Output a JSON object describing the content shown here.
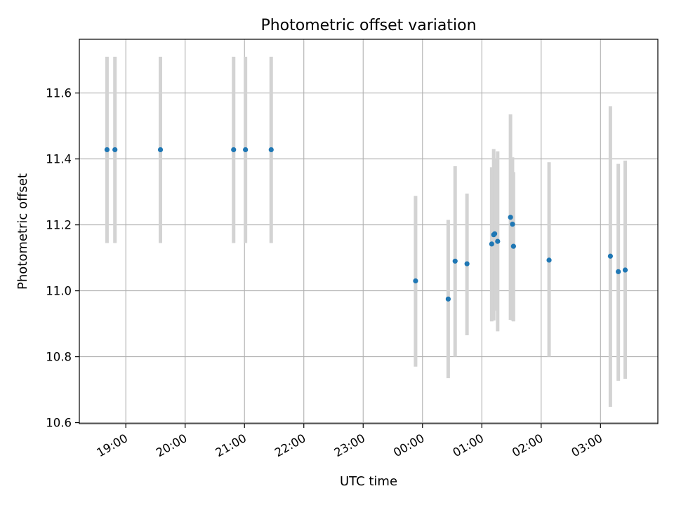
{
  "chart_data": {
    "type": "scatter",
    "title": "Photometric offset variation",
    "xlabel": "UTC time",
    "ylabel": "Photometric offset",
    "x_is_time": true,
    "xlim": [
      "18:13",
      "03:58"
    ],
    "ylim": [
      10.597,
      11.763
    ],
    "grid": true,
    "x_ticks": [
      "19:00",
      "20:00",
      "21:00",
      "22:00",
      "23:00",
      "00:00",
      "01:00",
      "02:00",
      "03:00"
    ],
    "y_ticks": [
      10.6,
      10.8,
      11.0,
      11.2,
      11.4,
      11.6
    ],
    "y_tick_labels": [
      "10.6",
      "10.8",
      "11.0",
      "11.2",
      "11.4",
      "11.6"
    ],
    "point_color": "#1f77b4",
    "errorbar_color": "#d3d3d3",
    "points": [
      {
        "x": "18:41",
        "y": 11.428,
        "ylow": 11.145,
        "yhigh": 11.71
      },
      {
        "x": "18:49",
        "y": 11.428,
        "ylow": 11.145,
        "yhigh": 11.71
      },
      {
        "x": "19:35",
        "y": 11.428,
        "ylow": 11.145,
        "yhigh": 11.71
      },
      {
        "x": "20:49",
        "y": 11.428,
        "ylow": 11.145,
        "yhigh": 11.71
      },
      {
        "x": "21:01",
        "y": 11.428,
        "ylow": 11.145,
        "yhigh": 11.71
      },
      {
        "x": "21:27",
        "y": 11.428,
        "ylow": 11.145,
        "yhigh": 11.71
      },
      {
        "x": "23:53",
        "y": 11.03,
        "ylow": 10.77,
        "yhigh": 11.288
      },
      {
        "x": "00:26",
        "y": 10.975,
        "ylow": 10.735,
        "yhigh": 11.215
      },
      {
        "x": "00:33",
        "y": 11.09,
        "ylow": 10.8,
        "yhigh": 11.378
      },
      {
        "x": "00:45",
        "y": 11.082,
        "ylow": 10.865,
        "yhigh": 11.295
      },
      {
        "x": "01:10",
        "y": 11.142,
        "ylow": 10.907,
        "yhigh": 11.375
      },
      {
        "x": "01:12",
        "y": 11.17,
        "ylow": 10.91,
        "yhigh": 11.43
      },
      {
        "x": "01:13",
        "y": 11.173,
        "ylow": 10.94,
        "yhigh": 11.4
      },
      {
        "x": "01:16",
        "y": 11.15,
        "ylow": 10.877,
        "yhigh": 11.423
      },
      {
        "x": "01:29",
        "y": 11.223,
        "ylow": 10.912,
        "yhigh": 11.535
      },
      {
        "x": "01:31",
        "y": 11.202,
        "ylow": 10.91,
        "yhigh": 11.405
      },
      {
        "x": "01:32",
        "y": 11.135,
        "ylow": 10.907,
        "yhigh": 11.36
      },
      {
        "x": "02:08",
        "y": 11.093,
        "ylow": 10.8,
        "yhigh": 11.39
      },
      {
        "x": "03:10",
        "y": 11.105,
        "ylow": 10.648,
        "yhigh": 11.56
      },
      {
        "x": "03:18",
        "y": 11.058,
        "ylow": 10.727,
        "yhigh": 11.385
      },
      {
        "x": "03:25",
        "y": 11.063,
        "ylow": 10.733,
        "yhigh": 11.395
      }
    ]
  }
}
